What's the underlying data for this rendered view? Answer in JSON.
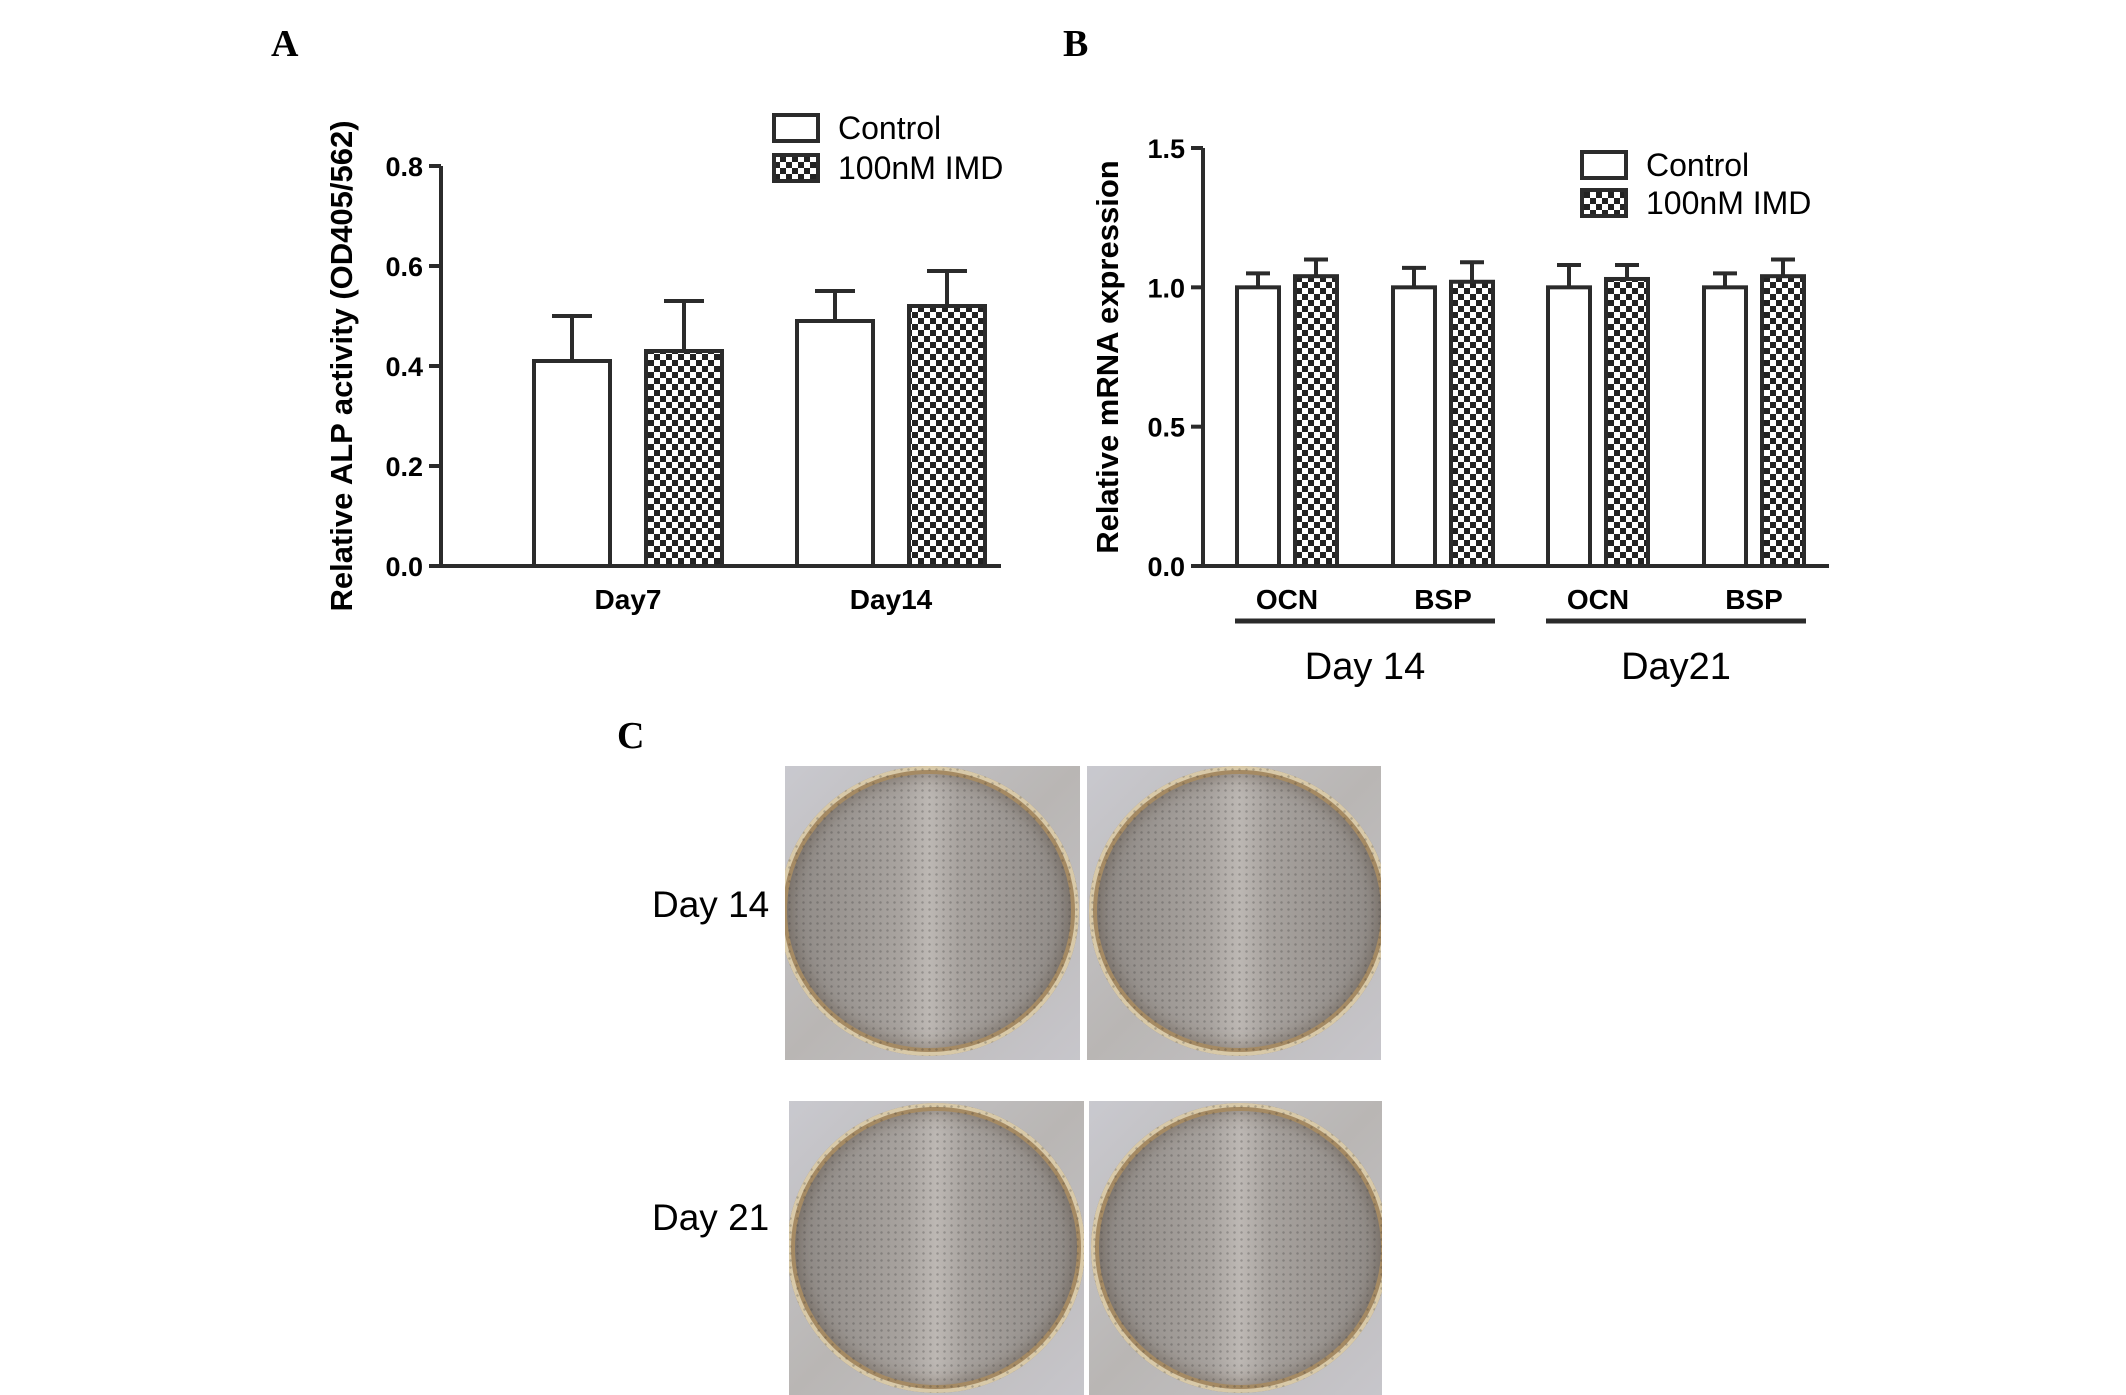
{
  "panels": {
    "A": "A",
    "B": "B",
    "C": "C"
  },
  "colors": {
    "bar_edge": "#2b2b2b",
    "pattern_dark": "#222222",
    "background": "#ffffff"
  },
  "chart_data": [
    {
      "panel": "A",
      "type": "bar",
      "ylabel": "Relative ALP activity (OD405/562)",
      "xlabel": "",
      "ylim": [
        0,
        0.8
      ],
      "yticks": [
        "0.0",
        "0.2",
        "0.4",
        "0.6",
        "0.8"
      ],
      "categories": [
        "Day7",
        "Day14"
      ],
      "series": [
        {
          "name": "Control",
          "pattern": "hollow",
          "values": [
            0.41,
            0.49
          ],
          "errors": [
            0.09,
            0.06
          ]
        },
        {
          "name": "100nM IMD",
          "pattern": "checker",
          "values": [
            0.43,
            0.52
          ],
          "errors": [
            0.1,
            0.07
          ]
        }
      ],
      "legend_position": "top-right",
      "grid": false
    },
    {
      "panel": "B",
      "type": "bar",
      "ylabel": "Relative mRNA expression",
      "xlabel": "",
      "ylim": [
        0,
        1.5
      ],
      "yticks": [
        "0.0",
        "0.5",
        "1.0",
        "1.5"
      ],
      "categories": [
        "OCN",
        "BSP",
        "OCN",
        "BSP"
      ],
      "groups": [
        {
          "label": "Day 14",
          "categories": [
            0,
            1
          ]
        },
        {
          "label": "Day21",
          "categories": [
            2,
            3
          ]
        }
      ],
      "series": [
        {
          "name": "Control",
          "pattern": "hollow",
          "values": [
            1.0,
            1.0,
            1.0,
            1.0
          ],
          "errors": [
            0.05,
            0.07,
            0.08,
            0.05
          ]
        },
        {
          "name": "100nM IMD",
          "pattern": "checker",
          "values": [
            1.04,
            1.02,
            1.03,
            1.04
          ],
          "errors": [
            0.06,
            0.07,
            0.05,
            0.06
          ]
        }
      ],
      "legend_position": "top-right",
      "grid": false
    }
  ],
  "photos": {
    "rows": [
      {
        "label": "Day 14"
      },
      {
        "label": "Day 21"
      }
    ]
  }
}
